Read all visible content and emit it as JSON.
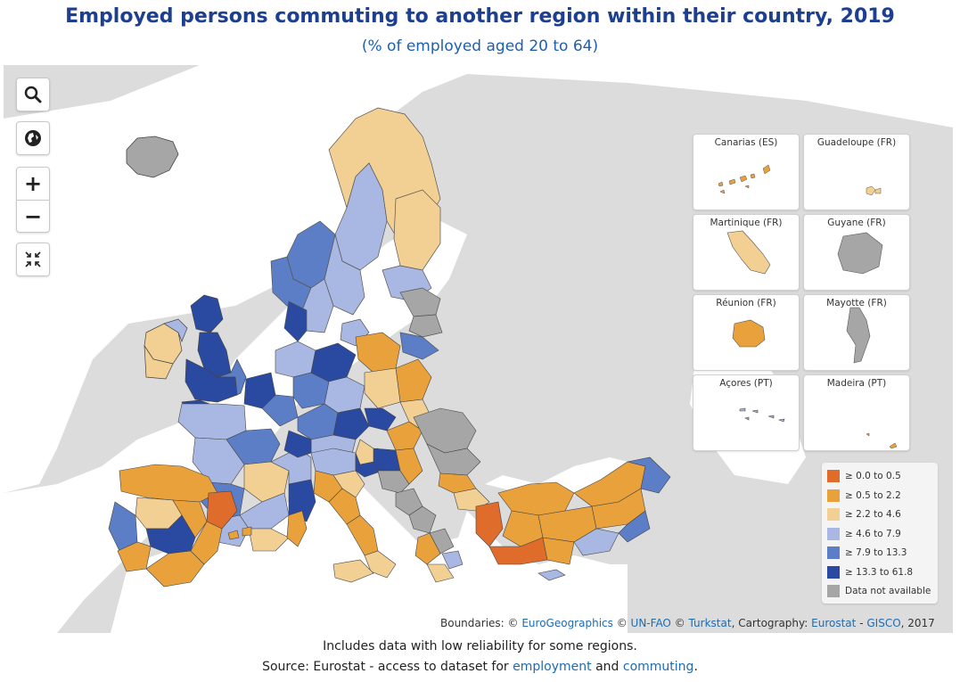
{
  "title": "Employed persons commuting to another region within their country, 2019",
  "subtitle": "(% of employed aged 20 to 64)",
  "controls": {
    "search_icon": "magnifier",
    "globe_icon": "globe",
    "zoom_in": "+",
    "zoom_out": "−",
    "fit_icon": "collapse-arrows"
  },
  "insets": [
    {
      "label": "Canarias (ES)"
    },
    {
      "label": "Guadeloupe (FR)"
    },
    {
      "label": "Martinique (FR)"
    },
    {
      "label": "Guyane (FR)"
    },
    {
      "label": "Réunion (FR)"
    },
    {
      "label": "Mayotte (FR)"
    },
    {
      "label": "Açores (PT)"
    },
    {
      "label": "Madeira (PT)"
    }
  ],
  "legend": [
    {
      "label": "≥ 0.0 to 0.5",
      "color": "#e06c2c"
    },
    {
      "label": "≥ 0.5 to 2.2",
      "color": "#e9a23b"
    },
    {
      "label": "≥ 2.2 to 4.6",
      "color": "#f2cf93"
    },
    {
      "label": "≥ 4.6 to 7.9",
      "color": "#a9b8e2"
    },
    {
      "label": "≥ 7.9 to 13.3",
      "color": "#5b7ec7"
    },
    {
      "label": "≥ 13.3 to 61.8",
      "color": "#2a4aa2"
    },
    {
      "label": "Data not available",
      "color": "#a6a6a6"
    }
  ],
  "colors": {
    "land_background": "#dcdcdc",
    "sea": "#ffffff",
    "title": "#1d3f8f",
    "link": "#1f6bb0"
  },
  "credits": {
    "prefix": "Boundaries: ©",
    "eurogeo": "EuroGeographics",
    "c2": "©",
    "unfao": "UN-FAO",
    "c3": "©",
    "turkstat": "Turkstat",
    "carto": ", Cartography:",
    "eurostat": "Eurostat",
    "dash": "-",
    "gisco": "GISCO",
    "year": ", 2017"
  },
  "note": "Includes data with low reliability for some regions.",
  "source": {
    "prefix": "Source: Eurostat - access to dataset for",
    "link1": "employment",
    "and": "and",
    "link2": "commuting",
    "end": "."
  }
}
